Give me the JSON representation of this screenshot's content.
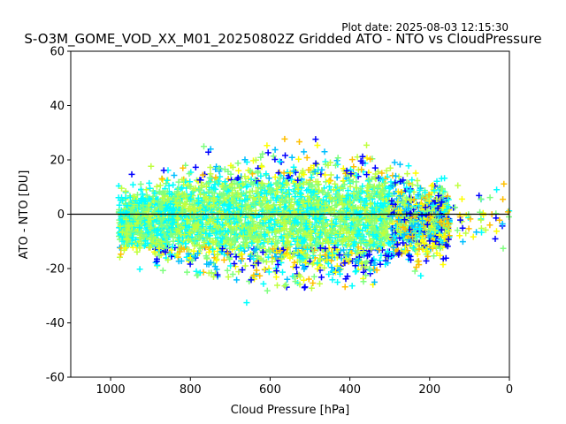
{
  "chart_data": {
    "type": "scatter",
    "title": "S-O3M_GOME_VOD_XX_M01_20250802Z Gridded ATO - NTO vs CloudPressure",
    "plot_date": "Plot date: 2025-08-03 12:15:30",
    "xlabel": "Cloud Pressure [hPa]",
    "ylabel": "ATO - NTO [DU]",
    "xlim": [
      1100,
      0
    ],
    "ylim": [
      -60,
      60
    ],
    "xaxis_inverted": true,
    "xticks": [
      1000,
      800,
      600,
      400,
      200,
      0
    ],
    "yticks": [
      60,
      40,
      20,
      0,
      -20,
      -40,
      -60
    ],
    "grid": false,
    "legend": "none",
    "marker": "plus",
    "reference_line_y": 0,
    "colors": [
      "#0000ff",
      "#00bfff",
      "#00ffff",
      "#7fff7f",
      "#bfff3f",
      "#ffff00",
      "#ffbf00"
    ],
    "density_cloud": {
      "x_range": [
        980,
        150
      ],
      "y_center": -2,
      "y_spread_at_center": 25,
      "outer_x_range": [
        1000,
        0
      ]
    }
  }
}
